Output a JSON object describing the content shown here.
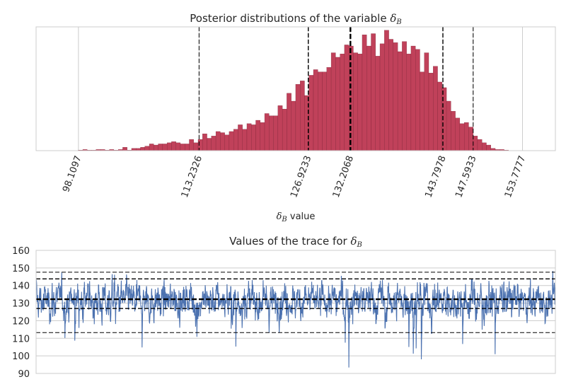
{
  "chart_data": [
    {
      "type": "bar",
      "title_prefix": "Posterior distributions of the variable ",
      "title_symbol": "δ",
      "title_sub": "B",
      "xlabel_symbol": "δ",
      "xlabel_sub": "B",
      "xlabel_suffix": " value",
      "xlim": [
        92.8,
        157.9
      ],
      "xticks": [
        "98.1097",
        "113.2326",
        "126.9233",
        "132.2068",
        "143.7978",
        "147.5933",
        "153.7777"
      ],
      "colors": {
        "bars": "#c0415a",
        "bar_edge": "#7a2033",
        "lines": "#000000",
        "grid": "#cccccc",
        "axes": "#cccccc"
      },
      "bin_start": 98.1,
      "bin_width": 0.556,
      "values": [
        0.5,
        1,
        0.5,
        0.5,
        1,
        1,
        0.5,
        1,
        0.5,
        1,
        3,
        0.5,
        2,
        2,
        3,
        4,
        6,
        5,
        6,
        6,
        7,
        8,
        7,
        6,
        6,
        10,
        7,
        10,
        15,
        11,
        13,
        17,
        16,
        14,
        17,
        19,
        23,
        19,
        24,
        23,
        27,
        25,
        33,
        31,
        31,
        40,
        37,
        51,
        44,
        59,
        62,
        49,
        67,
        72,
        70,
        70,
        74,
        87,
        83,
        86,
        94,
        93,
        87,
        86,
        103,
        93,
        104,
        84,
        95,
        107,
        99,
        96,
        88,
        97,
        86,
        93,
        90,
        70,
        87,
        69,
        75,
        61,
        56,
        44,
        35,
        29,
        24,
        25,
        21,
        13,
        10,
        7,
        5,
        2,
        1,
        1,
        0.5
      ],
      "ylim": [
        0,
        110
      ],
      "vlines": [
        {
          "x": 113.2326,
          "style": "dash",
          "width": 1
        },
        {
          "x": 126.9233,
          "style": "dash",
          "width": 1.4
        },
        {
          "x": 132.2068,
          "style": "dash",
          "width": 2.4
        },
        {
          "x": 143.7978,
          "style": "dash",
          "width": 1.4
        },
        {
          "x": 147.5933,
          "style": "dash",
          "width": 1
        }
      ]
    },
    {
      "type": "line",
      "title_prefix": "Values of the trace for ",
      "title_symbol": "δ",
      "title_sub": "B",
      "yticks": [
        "160",
        "150",
        "140",
        "130",
        "120",
        "110",
        "100",
        "90"
      ],
      "ylim": [
        90,
        160
      ],
      "n_samples": 2000,
      "colors": {
        "line": "#4c72b0",
        "hlines": "#000000",
        "grid": "#cccccc",
        "axes": "#cccccc"
      },
      "hlines": [
        {
          "y": 113.23,
          "width": 1
        },
        {
          "y": 126.92,
          "width": 1.4
        },
        {
          "y": 132.21,
          "width": 2.4
        },
        {
          "y": 143.8,
          "width": 1.4
        },
        {
          "y": 147.59,
          "width": 1
        }
      ]
    }
  ]
}
